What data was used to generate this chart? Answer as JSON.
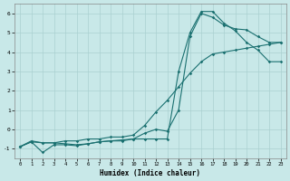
{
  "xlabel": "Humidex (Indice chaleur)",
  "bg_color": "#c8e8e8",
  "line_color": "#1a7070",
  "grid_color": "#aad0d0",
  "xlim": [
    -0.5,
    23.5
  ],
  "ylim": [
    -1.5,
    6.5
  ],
  "xticks": [
    0,
    1,
    2,
    3,
    4,
    5,
    6,
    7,
    8,
    9,
    10,
    11,
    12,
    13,
    14,
    15,
    16,
    17,
    18,
    19,
    20,
    21,
    22,
    23
  ],
  "yticks": [
    -1,
    0,
    1,
    2,
    3,
    4,
    5,
    6
  ],
  "series1_x": [
    0,
    1,
    2,
    3,
    4,
    5,
    6,
    7,
    8,
    9,
    10,
    11,
    12,
    13,
    14,
    15,
    16,
    17,
    18,
    19,
    20,
    21,
    22,
    23
  ],
  "series1_y": [
    -0.9,
    -0.6,
    -0.7,
    -0.7,
    -0.6,
    -0.6,
    -0.5,
    -0.5,
    -0.4,
    -0.4,
    -0.3,
    0.2,
    0.9,
    1.5,
    2.2,
    2.9,
    3.5,
    3.9,
    4.0,
    4.1,
    4.2,
    4.3,
    4.4,
    4.5
  ],
  "series2_x": [
    0,
    1,
    2,
    3,
    4,
    5,
    6,
    7,
    8,
    9,
    10,
    11,
    12,
    13,
    14,
    15,
    16,
    17,
    18,
    19,
    20,
    21,
    22,
    23
  ],
  "series2_y": [
    -0.9,
    -0.65,
    -0.7,
    -0.7,
    -0.75,
    -0.8,
    -0.75,
    -0.65,
    -0.6,
    -0.55,
    -0.5,
    -0.2,
    0.0,
    -0.1,
    1.0,
    4.8,
    6.0,
    5.8,
    5.4,
    5.2,
    5.15,
    4.8,
    4.5,
    4.5
  ],
  "series3_x": [
    0,
    1,
    2,
    3,
    4,
    5,
    6,
    7,
    8,
    9,
    10,
    11,
    12,
    13,
    14,
    15,
    16,
    17,
    18,
    19,
    20,
    21,
    22,
    23
  ],
  "series3_y": [
    -0.9,
    -0.65,
    -1.2,
    -0.8,
    -0.8,
    -0.85,
    -0.75,
    -0.65,
    -0.6,
    -0.6,
    -0.5,
    -0.5,
    -0.5,
    -0.5,
    3.0,
    5.0,
    6.1,
    6.1,
    5.5,
    5.1,
    4.5,
    4.1,
    3.5,
    3.5
  ]
}
